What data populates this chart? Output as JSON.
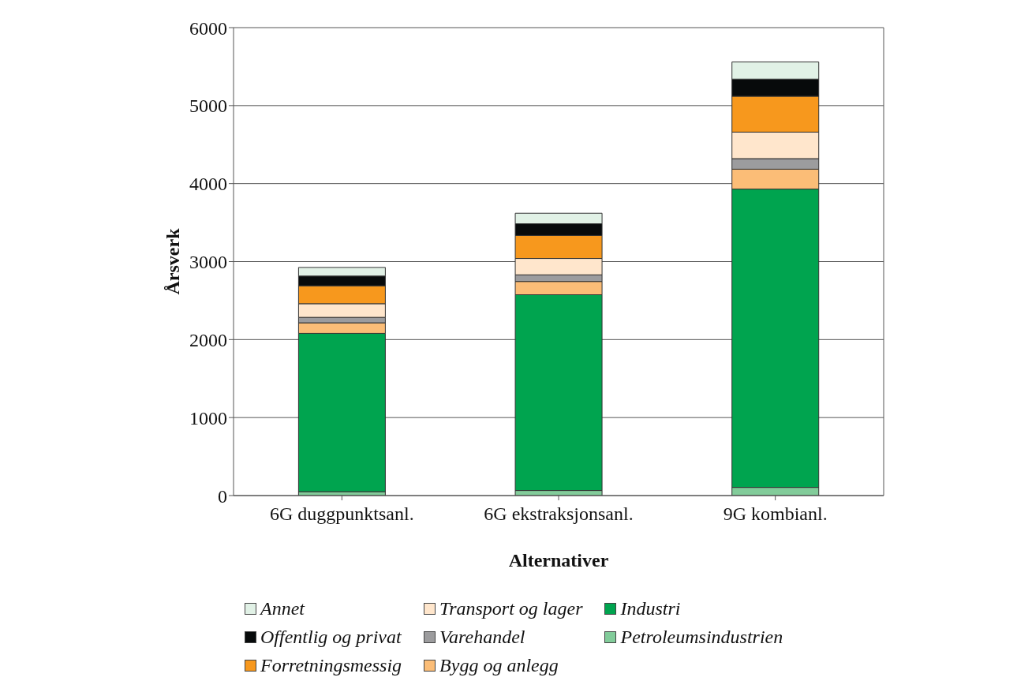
{
  "chart_data": {
    "type": "bar",
    "stacked": true,
    "xlabel": "Alternativer",
    "ylabel": "Årsverk",
    "categories": [
      "6G duggpunktsanl.",
      "6G ekstraksjonsanl.",
      "9G kombianl."
    ],
    "series": [
      {
        "name": "Petroleumsindustrien",
        "color": "#82cc9a",
        "values": [
          50,
          65,
          105
        ]
      },
      {
        "name": "Industri",
        "color": "#00a44f",
        "values": [
          2030,
          2510,
          3825
        ]
      },
      {
        "name": "Bygg og anlegg",
        "color": "#fbbd77",
        "values": [
          135,
          170,
          255
        ]
      },
      {
        "name": "Varehandel",
        "color": "#9c9c9e",
        "values": [
          70,
          85,
          135
        ]
      },
      {
        "name": "Transport og lager",
        "color": "#ffe6cc",
        "values": [
          175,
          210,
          340
        ]
      },
      {
        "name": "Forretningsmessig",
        "color": "#f7981d",
        "values": [
          230,
          295,
          460
        ]
      },
      {
        "name": "Offentlig og privat",
        "color": "#070a0b",
        "values": [
          125,
          150,
          220
        ]
      },
      {
        "name": "Annet",
        "color": "#e1f1e6",
        "values": [
          110,
          135,
          220
        ]
      }
    ],
    "ylim": [
      0,
      6000
    ],
    "yticks": [
      0,
      1000,
      2000,
      3000,
      4000,
      5000,
      6000
    ],
    "grid": "y",
    "legend": "bottom"
  }
}
